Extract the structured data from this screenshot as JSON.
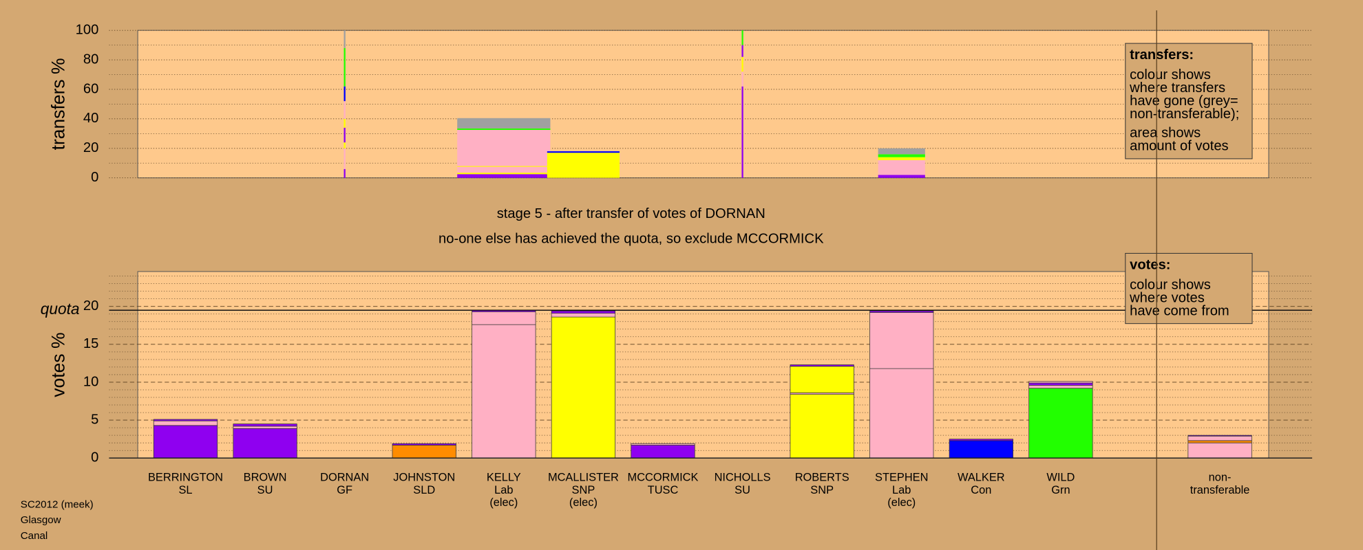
{
  "chart_data": [
    {
      "type": "bar",
      "ylabel": "transfers %",
      "ylim": [
        0,
        100
      ],
      "yticks": [
        0,
        20,
        40,
        60,
        80,
        100
      ],
      "minor_yticks": [
        10,
        30,
        50,
        70,
        90
      ],
      "major_grid": "dotted",
      "widths": [
        null,
        null,
        0.02,
        null,
        1.17,
        0.91,
        null,
        0.02,
        null,
        0.59,
        null,
        null,
        null,
        null
      ],
      "stacks": [
        [],
        [],
        [
          {
            "value": 6,
            "color": "#8f00f0"
          },
          {
            "value": 14,
            "color": "#ffb0c4"
          },
          {
            "value": 4,
            "color": "#ffff00"
          },
          {
            "value": 10,
            "color": "#8f00f0"
          },
          {
            "value": 6,
            "color": "#ffff00"
          },
          {
            "value": 12,
            "color": "#ffb0c4"
          },
          {
            "value": 10,
            "color": "#0000ff"
          },
          {
            "value": 26,
            "color": "#22ff00"
          },
          {
            "value": 12,
            "color": "#a0a0a0"
          }
        ],
        [],
        [
          {
            "value": 2.5,
            "color": "#8f00f0"
          },
          {
            "value": 1,
            "color": "#ffff00"
          },
          {
            "value": 4,
            "color": "#ffb0c4"
          },
          {
            "value": 0.5,
            "color": "#ffff00"
          },
          {
            "value": 24.5,
            "color": "#ffb0c4"
          },
          {
            "value": 1,
            "color": "#22ff00"
          },
          {
            "value": 7,
            "color": "#a0a0a0"
          }
        ],
        [
          {
            "value": 17,
            "color": "#ffff00"
          },
          {
            "value": 1,
            "color": "#0000ff"
          }
        ],
        [],
        [
          {
            "value": 62,
            "color": "#8f00f0"
          },
          {
            "value": 10,
            "color": "#ffb0c4"
          },
          {
            "value": 10,
            "color": "#ffff00"
          },
          {
            "value": 8,
            "color": "#8f00f0"
          },
          {
            "value": 10,
            "color": "#22ff00"
          }
        ],
        [],
        [
          {
            "value": 2,
            "color": "#8f00f0"
          },
          {
            "value": 10,
            "color": "#ffb0c4"
          },
          {
            "value": 2,
            "color": "#ffff00"
          },
          {
            "value": 2,
            "color": "#22ff00"
          },
          {
            "value": 4,
            "color": "#a0a0a0"
          }
        ],
        [],
        [],
        [],
        []
      ],
      "note": {
        "title": "transfers:",
        "paragraphs": [
          [
            "colour shows",
            "where transfers",
            "have gone (grey=",
            "non-transferable);"
          ],
          [
            "area shows",
            "amount of votes"
          ]
        ]
      }
    },
    {
      "type": "bar",
      "ylabel": "votes %",
      "ylim": [
        0,
        24.6
      ],
      "yticks": [
        0,
        5,
        10,
        15,
        20
      ],
      "minor_yticks": [
        1,
        2,
        3,
        4,
        6,
        7,
        8,
        9,
        11,
        12,
        13,
        14,
        16,
        17,
        18,
        19,
        21,
        22,
        23,
        24
      ],
      "major_grid": "dashed",
      "quota": {
        "value": 19.5,
        "label": "quota"
      },
      "categories": [
        [
          "BERRINGTON",
          "SL"
        ],
        [
          "BROWN",
          "SU"
        ],
        [
          "DORNAN",
          "GF"
        ],
        [
          "JOHNSTON",
          "SLD"
        ],
        [
          "KELLY",
          "Lab",
          "(elec)"
        ],
        [
          "MCALLISTER",
          "SNP",
          "(elec)"
        ],
        [
          "MCCORMICK",
          "TUSC"
        ],
        [
          "NICHOLLS",
          "SU"
        ],
        [
          "ROBERTS",
          "SNP"
        ],
        [
          "STEPHEN",
          "Lab",
          "(elec)"
        ],
        [
          "WALKER",
          "Con"
        ],
        [
          "WILD",
          "Grn"
        ],
        null,
        [
          "non-",
          "transferable"
        ]
      ],
      "stacks": [
        [
          {
            "value": 4.3,
            "color": "#8f00f0"
          },
          {
            "value": 0.6,
            "color": "#ffb0c4"
          },
          {
            "value": 0.2,
            "color": "#8f00f0"
          }
        ],
        [
          {
            "value": 3.9,
            "color": "#8f00f0"
          },
          {
            "value": 0.3,
            "color": "#ffb0c4"
          },
          {
            "value": 0.3,
            "color": "#8f00f0"
          }
        ],
        [],
        [
          {
            "value": 1.7,
            "color": "#ff8c00"
          },
          {
            "value": 0.2,
            "color": "#8f00f0"
          }
        ],
        [
          {
            "value": 17.6,
            "color": "#ffb0c4"
          },
          {
            "value": 1.7,
            "color": "#ffb0c4"
          },
          {
            "value": 0.2,
            "color": "#8f00f0"
          }
        ],
        [
          {
            "value": 18.6,
            "color": "#ffff00"
          },
          {
            "value": 0.5,
            "color": "#ffb0c4"
          },
          {
            "value": 0.3,
            "color": "#8f00f0"
          }
        ],
        [
          {
            "value": 1.7,
            "color": "#8f00f0"
          },
          {
            "value": 0.2,
            "color": "#ffb0c4"
          }
        ],
        [],
        [
          {
            "value": 8.4,
            "color": "#ffff00"
          },
          {
            "value": 0.2,
            "color": "#ffb0c4"
          },
          {
            "value": 3.5,
            "color": "#ffff00"
          },
          {
            "value": 0.2,
            "color": "#8f00f0"
          }
        ],
        [
          {
            "value": 11.8,
            "color": "#ffb0c4"
          },
          {
            "value": 7.4,
            "color": "#ffb0c4"
          },
          {
            "value": 0.2,
            "color": "#8f00f0"
          }
        ],
        [
          {
            "value": 2.3,
            "color": "#0000ff"
          },
          {
            "value": 0.2,
            "color": "#8f00f0"
          }
        ],
        [
          {
            "value": 9.2,
            "color": "#22ff00"
          },
          {
            "value": 0.4,
            "color": "#ffb0c4"
          },
          {
            "value": 0.3,
            "color": "#8f00f0"
          },
          {
            "value": 0.2,
            "color": "#ffb0c4"
          }
        ],
        [],
        [
          {
            "value": 2.0,
            "color": "#ffb0c4"
          },
          {
            "value": 0.3,
            "color": "#ff8c00"
          },
          {
            "value": 0.6,
            "color": "#ffb0c4"
          },
          {
            "value": 0.1,
            "color": "#8f00f0"
          }
        ]
      ],
      "note": {
        "title": "votes:",
        "paragraphs": [
          [
            "colour shows",
            "where votes",
            "have come from"
          ]
        ]
      }
    }
  ],
  "annotations": [
    "stage 5 - after transfer of votes of DORNAN",
    "no-one else has achieved the quota, so exclude MCCORMICK"
  ],
  "footer": [
    "SC2012 (meek)",
    "Glasgow",
    "Canal"
  ]
}
